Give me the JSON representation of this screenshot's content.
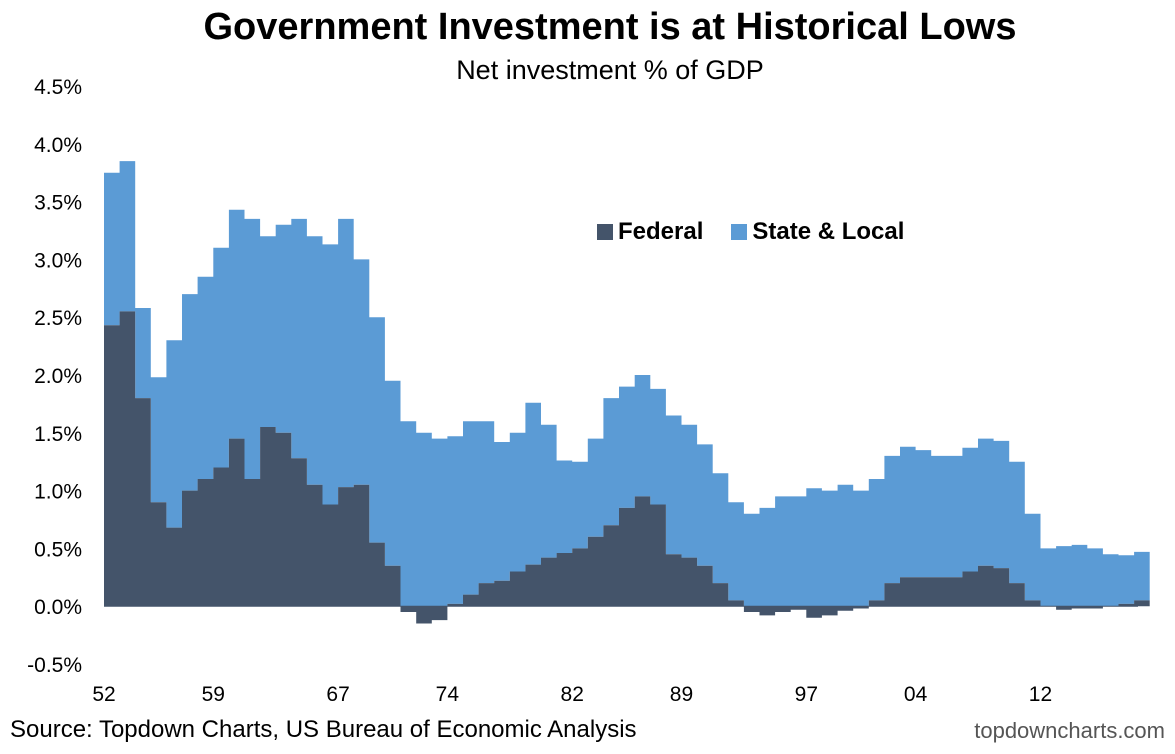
{
  "chart_data": {
    "type": "area",
    "title": "Government Investment is at Historical Lows",
    "subtitle": "Net investment % of GDP",
    "xlabel": "",
    "ylabel": "",
    "xlim": [
      1952,
      2018.25
    ],
    "ylim": [
      -0.5,
      4.5
    ],
    "y_ticks": [
      -0.5,
      0.0,
      0.5,
      1.0,
      1.5,
      2.0,
      2.5,
      3.0,
      3.5,
      4.0,
      4.5
    ],
    "y_tick_labels": [
      "-0.5%",
      "0.0%",
      "0.5%",
      "1.0%",
      "1.5%",
      "2.0%",
      "2.5%",
      "3.0%",
      "3.5%",
      "4.0%",
      "4.5%"
    ],
    "x_ticks": [
      1952,
      1959,
      1967,
      1974,
      1982,
      1989,
      1997,
      2004,
      2012
    ],
    "x_tick_labels": [
      "52",
      "59",
      "67",
      "74",
      "82",
      "89",
      "97",
      "04",
      "12"
    ],
    "stacked": true,
    "legend_position": "top-right",
    "grid": false,
    "x": [
      1952,
      1953,
      1954,
      1955,
      1956,
      1957,
      1958,
      1959,
      1960,
      1961,
      1962,
      1963,
      1964,
      1965,
      1966,
      1967,
      1968,
      1969,
      1970,
      1971,
      1972,
      1973,
      1974,
      1975,
      1976,
      1977,
      1978,
      1979,
      1980,
      1981,
      1982,
      1983,
      1984,
      1985,
      1986,
      1987,
      1988,
      1989,
      1990,
      1991,
      1992,
      1993,
      1994,
      1995,
      1996,
      1997,
      1998,
      1999,
      2000,
      2001,
      2002,
      2003,
      2004,
      2005,
      2006,
      2007,
      2008,
      2009,
      2010,
      2011,
      2012,
      2013,
      2014,
      2015,
      2016,
      2017,
      2018
    ],
    "series": [
      {
        "name": "Federal",
        "color": "#44546a",
        "values": [
          2.43,
          2.55,
          1.8,
          0.9,
          0.68,
          1.0,
          1.1,
          1.2,
          1.45,
          1.1,
          1.55,
          1.5,
          1.28,
          1.05,
          0.88,
          1.03,
          1.05,
          0.55,
          0.35,
          -0.05,
          -0.15,
          -0.12,
          0.02,
          0.1,
          0.2,
          0.22,
          0.3,
          0.36,
          0.42,
          0.46,
          0.5,
          0.6,
          0.7,
          0.85,
          0.95,
          0.88,
          0.45,
          0.42,
          0.35,
          0.2,
          0.05,
          -0.05,
          -0.08,
          -0.05,
          -0.03,
          -0.1,
          -0.08,
          -0.04,
          -0.02,
          0.05,
          0.2,
          0.25,
          0.25,
          0.25,
          0.25,
          0.3,
          0.35,
          0.33,
          0.2,
          0.05,
          0.0,
          -0.03,
          -0.02,
          -0.02,
          0.0,
          0.02,
          0.05
        ]
      },
      {
        "name": "State & Local",
        "color": "#5b9bd5",
        "values": [
          1.32,
          1.3,
          0.78,
          1.08,
          1.62,
          1.7,
          1.75,
          1.9,
          1.98,
          2.25,
          1.65,
          1.8,
          2.07,
          2.15,
          2.25,
          2.32,
          1.95,
          1.95,
          1.6,
          1.6,
          1.5,
          1.45,
          1.45,
          1.5,
          1.4,
          1.2,
          1.2,
          1.4,
          1.15,
          0.8,
          0.75,
          0.85,
          1.1,
          1.05,
          1.05,
          1.0,
          1.2,
          1.15,
          1.05,
          0.95,
          0.85,
          0.8,
          0.85,
          0.95,
          0.95,
          1.02,
          1.0,
          1.05,
          1.0,
          1.05,
          1.1,
          1.13,
          1.1,
          1.05,
          1.05,
          1.07,
          1.1,
          1.1,
          1.05,
          0.75,
          0.5,
          0.52,
          0.53,
          0.5,
          0.45,
          0.42,
          0.42
        ]
      }
    ]
  },
  "footer": {
    "source": "Source: Topdown Charts, US Bureau of Economic Analysis",
    "brand": "topdowncharts.com"
  }
}
